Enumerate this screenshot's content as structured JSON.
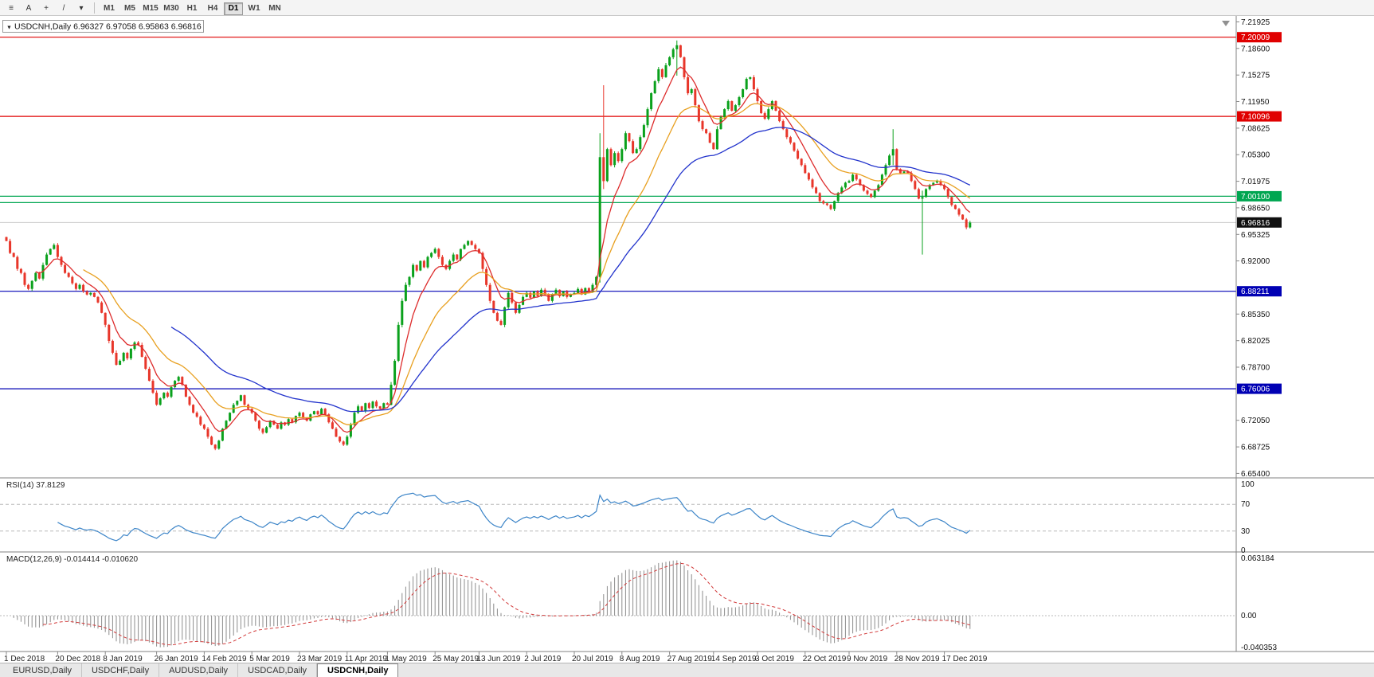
{
  "toolbar": {
    "left_buttons": [
      {
        "name": "charts-list-icon",
        "glyph": "≡"
      },
      {
        "name": "text-annotation-icon",
        "glyph": "A"
      },
      {
        "name": "crosshair-icon",
        "glyph": "+"
      },
      {
        "name": "trendline-tool-icon",
        "glyph": "/"
      },
      {
        "name": "tools-dropdown-icon",
        "glyph": "▾"
      }
    ],
    "timeframes": [
      "M1",
      "M5",
      "M15",
      "M30",
      "H1",
      "H4",
      "D1",
      "W1",
      "MN"
    ],
    "active_timeframe": "D1"
  },
  "header": {
    "collapse_arrow": "▼",
    "symbol": "USDCNH,Daily",
    "ohlc_text": "6.96327 6.97058 6.95863 6.96816"
  },
  "tabs": [
    {
      "label": "EURUSD,Daily",
      "active": false
    },
    {
      "label": "USDCHF,Daily",
      "active": false
    },
    {
      "label": "AUDUSD,Daily",
      "active": false
    },
    {
      "label": "USDCAD,Daily",
      "active": false
    },
    {
      "label": "USDCNH,Daily",
      "active": true
    }
  ],
  "chart_data": {
    "type": "candlestick",
    "title": "USDCNH,Daily",
    "symbol": "USDCNH",
    "timeframe": "Daily",
    "last_candle": {
      "open": 6.96327,
      "high": 6.97058,
      "low": 6.95863,
      "close": 6.96816
    },
    "candle_colors": {
      "up": "#0aa11c",
      "down": "#e8362a"
    },
    "price_axis_ticks": [
      7.21925,
      7.186,
      7.15275,
      7.1195,
      7.08625,
      7.053,
      7.01975,
      6.9865,
      6.95325,
      6.92,
      6.88675,
      6.8535,
      6.82025,
      6.787,
      6.75375,
      6.7205,
      6.68725,
      6.654
    ],
    "horizontal_lines": [
      {
        "price": 7.20009,
        "label": "7.20009",
        "color": "#e00000"
      },
      {
        "price": 7.10096,
        "label": "7.10096",
        "color": "#e00000"
      },
      {
        "price": 7.001,
        "label": "7.00100",
        "color": "#00a651"
      },
      {
        "price": 6.993,
        "label": "",
        "color": "#00a651"
      },
      {
        "price": 6.88211,
        "label": "6.88211",
        "color": "#0000b4"
      },
      {
        "price": 6.76006,
        "label": "6.76006",
        "color": "#0000b4"
      }
    ],
    "current_price": {
      "value": 6.96816,
      "label": "6.96816",
      "line_color": "#c9c9c9",
      "bg": "#101010"
    },
    "moving_averages": [
      {
        "name": "ma-fast",
        "period": 8,
        "color": "#dd2c2c"
      },
      {
        "name": "ma-mid",
        "period": 21,
        "color": "#e8a020"
      },
      {
        "name": "ma-slow",
        "period": 45,
        "color": "#2233cc"
      }
    ],
    "x_axis_dates": [
      {
        "label": "1 Dec 2018",
        "i": 0
      },
      {
        "label": "20 Dec 2018",
        "i": 14
      },
      {
        "label": "8 Jan 2019",
        "i": 27
      },
      {
        "label": "26 Jan 2019",
        "i": 41
      },
      {
        "label": "14 Feb 2019",
        "i": 54
      },
      {
        "label": "5 Mar 2019",
        "i": 67
      },
      {
        "label": "23 Mar 2019",
        "i": 80
      },
      {
        "label": "11 Apr 2019",
        "i": 93
      },
      {
        "label": "1 May 2019",
        "i": 104
      },
      {
        "label": "25 May 2019",
        "i": 117
      },
      {
        "label": "13 Jun 2019",
        "i": 129
      },
      {
        "label": "2 Jul 2019",
        "i": 142
      },
      {
        "label": "20 Jul 2019",
        "i": 155
      },
      {
        "label": "8 Aug 2019",
        "i": 168
      },
      {
        "label": "27 Aug 2019",
        "i": 181
      },
      {
        "label": "14 Sep 2019",
        "i": 193
      },
      {
        "label": "3 Oct 2019",
        "i": 205
      },
      {
        "label": "22 Oct 2019",
        "i": 218
      },
      {
        "label": "9 Nov 2019",
        "i": 230
      },
      {
        "label": "28 Nov 2019",
        "i": 243
      },
      {
        "label": "17 Dec 2019",
        "i": 256
      }
    ],
    "candles": {
      "first_open": 6.95,
      "closes": [
        6.945,
        6.93,
        6.925,
        6.91,
        6.905,
        6.89,
        6.885,
        6.895,
        6.905,
        6.898,
        6.915,
        6.928,
        6.935,
        6.94,
        6.925,
        6.915,
        6.905,
        6.9,
        6.892,
        6.885,
        6.89,
        6.882,
        6.878,
        6.88,
        6.875,
        6.868,
        6.855,
        6.84,
        6.82,
        6.805,
        6.79,
        6.795,
        6.805,
        6.798,
        6.81,
        6.818,
        6.815,
        6.8,
        6.785,
        6.77,
        6.755,
        6.74,
        6.748,
        6.755,
        6.75,
        6.762,
        6.77,
        6.775,
        6.765,
        6.75,
        6.74,
        6.73,
        6.725,
        6.715,
        6.71,
        6.7,
        6.69,
        6.685,
        6.695,
        6.71,
        6.72,
        6.73,
        6.74,
        6.745,
        6.752,
        6.74,
        6.735,
        6.73,
        6.72,
        6.71,
        6.705,
        6.712,
        6.72,
        6.715,
        6.71,
        6.718,
        6.715,
        6.722,
        6.718,
        6.726,
        6.73,
        6.724,
        6.72,
        6.728,
        6.732,
        6.728,
        6.735,
        6.728,
        6.718,
        6.71,
        6.7,
        6.694,
        6.69,
        6.7,
        6.715,
        6.73,
        6.738,
        6.732,
        6.742,
        6.736,
        6.744,
        6.738,
        6.735,
        6.742,
        6.74,
        6.765,
        6.795,
        6.84,
        6.87,
        6.89,
        6.9,
        6.915,
        6.908,
        6.92,
        6.912,
        6.925,
        6.93,
        6.935,
        6.925,
        6.915,
        6.91,
        6.92,
        6.928,
        6.922,
        6.935,
        6.94,
        6.945,
        6.94,
        6.935,
        6.93,
        6.91,
        6.89,
        6.87,
        6.855,
        6.845,
        6.84,
        6.862,
        6.88,
        6.868,
        6.855,
        6.865,
        6.875,
        6.88,
        6.874,
        6.882,
        6.876,
        6.884,
        6.878,
        6.87,
        6.878,
        6.884,
        6.876,
        6.882,
        6.875,
        6.878,
        6.88,
        6.885,
        6.878,
        6.886,
        6.882,
        6.89,
        6.9,
        7.05,
        7.02,
        7.06,
        7.04,
        7.055,
        7.045,
        7.06,
        7.08,
        7.07,
        7.055,
        7.06,
        7.075,
        7.09,
        7.11,
        7.13,
        7.145,
        7.16,
        7.15,
        7.165,
        7.175,
        7.185,
        7.19,
        7.175,
        7.15,
        7.13,
        7.135,
        7.115,
        7.095,
        7.085,
        7.08,
        7.068,
        7.06,
        7.085,
        7.1,
        7.11,
        7.12,
        7.108,
        7.115,
        7.125,
        7.135,
        7.148,
        7.15,
        7.135,
        7.12,
        7.105,
        7.098,
        7.11,
        7.12,
        7.108,
        7.095,
        7.085,
        7.075,
        7.068,
        7.058,
        7.048,
        7.04,
        7.03,
        7.022,
        7.012,
        7.005,
        6.995,
        6.992,
        6.99,
        6.985,
        6.995,
        7.005,
        7.012,
        7.018,
        7.02,
        7.028,
        7.022,
        7.015,
        7.008,
        7.004,
        7.0,
        7.008,
        7.015,
        7.028,
        7.04,
        7.052,
        7.06,
        7.035,
        7.03,
        7.032,
        7.03,
        7.02,
        7.01,
        6.998,
        7.0,
        7.01,
        7.015,
        7.018,
        7.02,
        7.015,
        7.01,
        7.0,
        6.99,
        6.985,
        6.978,
        6.972,
        6.962,
        6.968
      ],
      "overrides": {
        "162": [
          6.9,
          7.08,
          6.893,
          7.05
        ],
        "163": [
          7.05,
          7.14,
          7.01,
          7.02
        ],
        "183": [
          7.185,
          7.196,
          7.152,
          7.19
        ],
        "242": [
          7.052,
          7.085,
          7.04,
          7.06
        ],
        "250": [
          6.998,
          7.008,
          6.928,
          7.0
        ]
      }
    },
    "indicators": {
      "rsi": {
        "label": "RSI(14)",
        "value_text": "37.8129",
        "value": 37.8129,
        "period": 14,
        "levels": [
          70,
          30
        ],
        "axis_labels": [
          "100",
          "70",
          "30",
          "0"
        ],
        "color": "#3d85c8"
      },
      "macd": {
        "label": "MACD(12,26,9)",
        "value_text": "-0.014414 -0.010620",
        "macd": -0.014414,
        "signal": -0.01062,
        "params": [
          12,
          26,
          9
        ],
        "axis_labels": [
          "0.063184",
          "0.00",
          "-0.040353"
        ],
        "hist_color": "#8c8c8c",
        "signal_color": "#d23a3a"
      }
    }
  }
}
